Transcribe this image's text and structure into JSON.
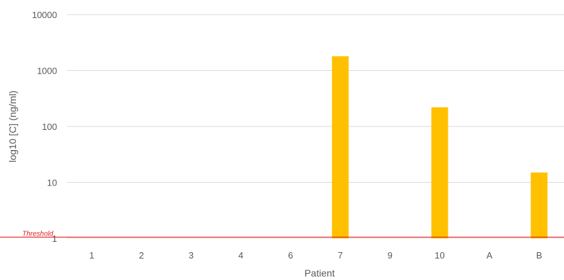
{
  "chart_data": {
    "type": "bar",
    "title": "",
    "xlabel": "Patient",
    "ylabel": "log10 [C] (ng/ml)",
    "y_scale": "log10",
    "ylim": [
      1,
      10000
    ],
    "y_ticks": [
      "1",
      "10",
      "100",
      "1000",
      "10000"
    ],
    "grid": true,
    "categories": [
      "1",
      "2",
      "3",
      "4",
      "6",
      "7",
      "9",
      "10",
      "A",
      "B"
    ],
    "values": [
      null,
      null,
      null,
      null,
      null,
      1800,
      null,
      220,
      null,
      15
    ],
    "bar_color": "#ffc000",
    "threshold": {
      "label": "Threshold",
      "value": 1.05,
      "color": "#e02020"
    }
  }
}
